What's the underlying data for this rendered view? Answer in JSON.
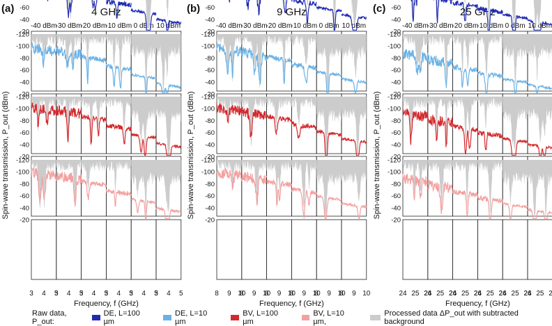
{
  "figure": {
    "panel_labels": [
      "(a)",
      "(b)",
      "(c)"
    ],
    "ylabel": "Spin-wave transmission, P_out (dBm)",
    "xlabel": "Frequency, f (GHz)"
  },
  "legend": {
    "lead": "Raw data, P_out:",
    "entries": [
      {
        "label": "DE, L=100 µm",
        "color": "#1f2bb3"
      },
      {
        "label": "DE, L=10 µm",
        "color": "#6ab2e6"
      },
      {
        "label": "BV, L=100 µm",
        "color": "#d42a2e"
      },
      {
        "label": "BV, L=10 µm,",
        "color": "#f4a0a0"
      },
      {
        "label": "Processed data ΔP_out with subtracted background",
        "color": "#cccccc"
      }
    ]
  },
  "chart_data": [
    {
      "type": "line",
      "panel": "(a)",
      "title": "4 GHz",
      "power_columns": [
        "-40 dBm",
        "-30 dBm",
        "-20 dBm",
        "-10 dBm",
        "0 dBm",
        "10 dBm"
      ],
      "x_ticks_per_column": [
        "3",
        "4",
        "5"
      ],
      "xlim": [
        3,
        5
      ],
      "ylim": [
        -120,
        -20
      ],
      "y_ticks": [
        -20,
        -40,
        -60,
        -80,
        -100,
        -120
      ],
      "rows": [
        "DE, L=100 µm",
        "DE, L=10 µm",
        "BV, L=100 µm",
        "BV, L=10 µm"
      ],
      "baseline_by_power_dbm": [
        -100,
        -95,
        -85,
        -70,
        -55,
        -40
      ],
      "xlabel": "Frequency, f (GHz)",
      "ylabel": "Spin-wave transmission, P_out (dBm)"
    },
    {
      "type": "line",
      "panel": "(b)",
      "title": "9 GHz",
      "power_columns": [
        "-40 dBm",
        "-30 dBm",
        "-20 dBm",
        "-10 dBm",
        "0 dBm",
        "10 dBm"
      ],
      "x_ticks_per_column": [
        "8",
        "9",
        "10"
      ],
      "xlim": [
        8,
        10
      ],
      "ylim": [
        -120,
        -20
      ],
      "y_ticks": [
        -20,
        -40,
        -60,
        -80,
        -100,
        -120
      ],
      "rows": [
        "DE, L=100 µm",
        "DE, L=10 µm",
        "BV, L=100 µm",
        "BV, L=10 µm"
      ],
      "baseline_by_power_dbm": [
        -100,
        -93,
        -85,
        -72,
        -60,
        -48
      ],
      "xlabel": "Frequency, f (GHz)",
      "ylabel": "Spin-wave transmission, P_out (dBm)"
    },
    {
      "type": "line",
      "panel": "(c)",
      "title": "25 GHz",
      "power_columns": [
        "-40 dBm",
        "-30 dBm",
        "-20 dBm",
        "-10 dBm",
        "0 dBm",
        "10 dBm"
      ],
      "x_ticks_per_column": [
        "24",
        "25",
        "26"
      ],
      "xlim": [
        24,
        26
      ],
      "ylim": [
        -120,
        -20
      ],
      "y_ticks": [
        -20,
        -40,
        -60,
        -80,
        -100,
        -120
      ],
      "rows": [
        "DE, L=100 µm",
        "DE, L=10 µm",
        "BV, L=100 µm",
        "BV, L=10 µm"
      ],
      "baseline_by_power_dbm": [
        -90,
        -80,
        -68,
        -58,
        -48,
        -38
      ],
      "xlabel": "Frequency, f (GHz)",
      "ylabel": "Spin-wave transmission, P_out (dBm)"
    }
  ]
}
